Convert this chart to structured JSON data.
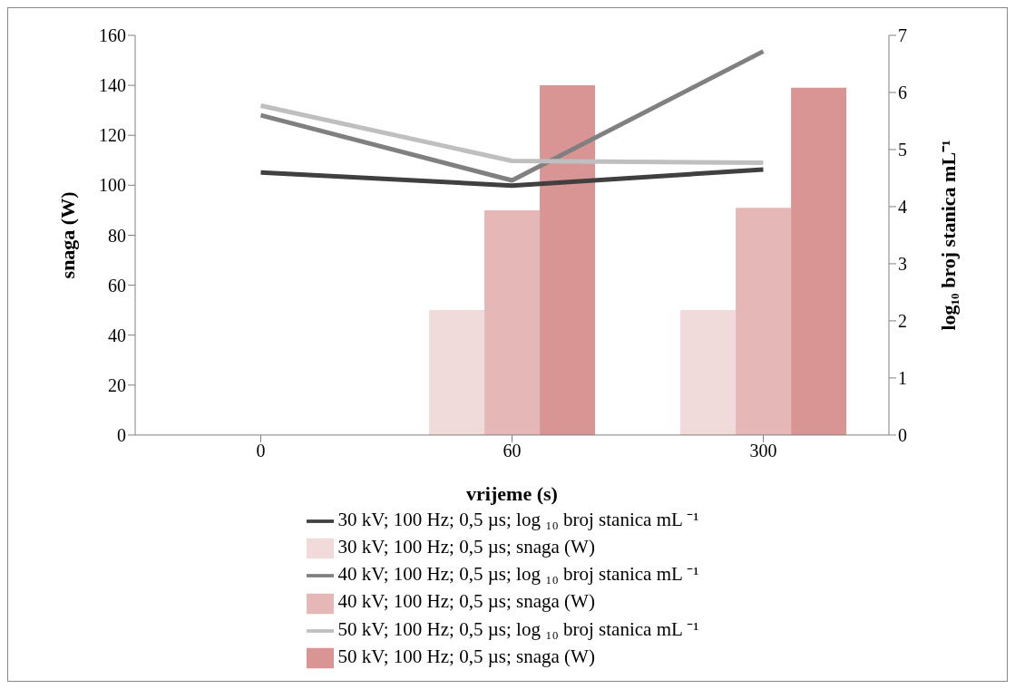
{
  "chart_data": {
    "type": "bar",
    "xlabel": "vrijeme (s)",
    "ylabel": "snaga (W)",
    "y2label": "log₁₀ broj stanica mL⁻¹",
    "categories": [
      "0",
      "60",
      "300"
    ],
    "series": [
      {
        "name": "30 kV; 100 Hz; 0,5 µs; snaga (W)",
        "color": "#f0dada",
        "values": [
          null,
          50,
          50
        ]
      },
      {
        "name": "40 kV; 100 Hz; 0,5 µs; snaga (W)",
        "color": "#e5b7b6",
        "values": [
          null,
          90,
          91
        ]
      },
      {
        "name": "50 kV; 100 Hz; 0,5 µs; snaga (W)",
        "color": "#d99594",
        "values": [
          null,
          140,
          139
        ]
      },
      {
        "name": "30 kV; 100 Hz; 0,5 µs;  log ₁₀ broj stanica mL ⁻¹",
        "type": "line",
        "axis": "y2",
        "color": "#404040",
        "values": [
          4.6,
          4.37,
          4.65
        ]
      },
      {
        "name": "40 kV; 100 Hz; 0,5 µs;  log ₁₀ broj stanica mL ⁻¹",
        "type": "line",
        "axis": "y2",
        "color": "#808080",
        "values": [
          5.6,
          4.46,
          6.72
        ]
      },
      {
        "name": "50 kV; 100 Hz; 0,5 µs;  log ₁₀ broj stanica mL ⁻¹",
        "type": "line",
        "axis": "y2",
        "color": "#bfbfbf",
        "values": [
          5.77,
          4.8,
          4.77
        ]
      }
    ],
    "ylim": [
      0,
      160
    ],
    "yticks": [
      0,
      20,
      40,
      60,
      80,
      100,
      120,
      140,
      160
    ],
    "y2lim": [
      0,
      7
    ],
    "y2ticks": [
      0,
      1,
      2,
      3,
      4,
      5,
      6,
      7
    ],
    "grid": false,
    "legend": "bottom",
    "marker": "none",
    "line_style": "solid"
  }
}
